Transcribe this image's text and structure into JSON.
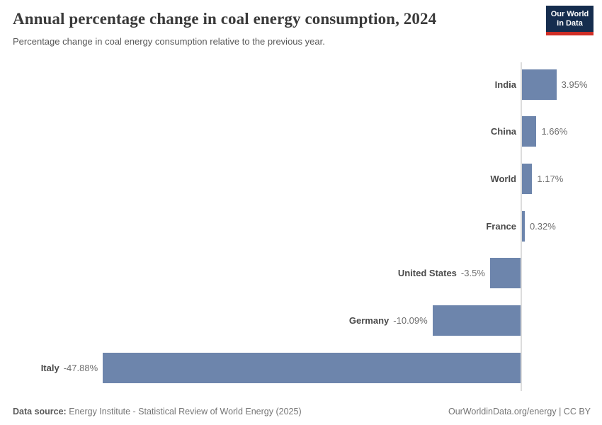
{
  "header": {
    "title": "Annual percentage change in coal energy consumption, 2024",
    "subtitle": "Percentage change in coal energy consumption relative to the previous year."
  },
  "logo": {
    "line1": "Our World",
    "line2": "in Data",
    "background_color": "#152d4e",
    "stripe_color": "#cf2e26"
  },
  "chart_data": {
    "type": "bar",
    "orientation": "horizontal",
    "title": "Annual percentage change in coal energy consumption, 2024",
    "subtitle": "Percentage change in coal energy consumption relative to the previous year.",
    "xlabel": "",
    "ylabel": "",
    "categories": [
      "India",
      "China",
      "World",
      "France",
      "United States",
      "Germany",
      "Italy"
    ],
    "values": [
      3.95,
      1.66,
      1.17,
      0.32,
      -3.5,
      -10.09,
      -47.88
    ],
    "value_labels": [
      "3.95%",
      "1.66%",
      "1.17%",
      "0.32%",
      "-3.5%",
      "-10.09%",
      "-47.88%"
    ],
    "bar_color": "#6d85ac",
    "zero_line_color": "#dcdcdc",
    "xlim": [
      -47.88,
      3.95
    ],
    "grid": false,
    "legend": "none"
  },
  "footer": {
    "source_label": "Data source:",
    "source_text": "Energy Institute - Statistical Review of World Energy (2025)",
    "credit": "OurWorldinData.org/energy | CC BY"
  }
}
